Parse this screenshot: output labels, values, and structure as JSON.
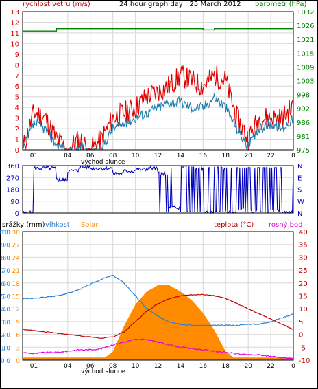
{
  "colors": {
    "wind_gust": "#e00000",
    "wind_avg": "#1e7fb0",
    "barometer": "#008000",
    "direction": "#0000c0",
    "humidity": "#2a7fd0",
    "solar": "#ff8c00",
    "temperature": "#c00000",
    "dewpoint": "#e000e0",
    "rain_axis": "#1e90ff",
    "grid": "#d8d8d8",
    "frame": "#000000"
  },
  "chart_data": [
    {
      "type": "line",
      "panel": "wind-barometer",
      "title": "24 hour graph day : 25 March 2012",
      "ylabel_left": "rychlost vetru (m/s)",
      "ylabel_right": "barometr (hPa)",
      "x_ticks": [
        "01",
        "04",
        "06",
        "08",
        "10",
        "12",
        "14",
        "16",
        "18",
        "20",
        "22",
        "0"
      ],
      "x_note": "východ slunce",
      "y_left_ticks": [
        "0",
        "1",
        "2",
        "3",
        "4",
        "5",
        "6",
        "7",
        "8",
        "9",
        "10",
        "11",
        "12",
        "13"
      ],
      "y_left_range": [
        0,
        13
      ],
      "y_right_ticks": [
        "975",
        "981",
        "986",
        "992",
        "998",
        "1003",
        "1009",
        "1015",
        "1021",
        "1026",
        "1032"
      ],
      "y_right_range": [
        975,
        1032
      ],
      "x": [
        0,
        1,
        2,
        3,
        4,
        5,
        6,
        7,
        8,
        9,
        10,
        11,
        12,
        13,
        14,
        15,
        16,
        17,
        18,
        19,
        20,
        21,
        22,
        23,
        24
      ],
      "series": [
        {
          "key": "gust",
          "values": [
            0,
            3.5,
            3,
            1,
            0,
            1,
            0,
            1,
            3,
            3.5,
            4,
            5,
            5.5,
            6,
            7,
            6.5,
            6,
            7,
            6.5,
            3,
            1,
            3,
            3,
            3,
            4
          ]
        },
        {
          "key": "avg",
          "values": [
            0,
            2.5,
            2,
            0.5,
            0,
            0.3,
            0,
            0.2,
            2,
            2.5,
            3,
            3.5,
            4,
            4.5,
            4.5,
            4,
            4,
            5,
            4,
            2,
            0.3,
            2,
            2.5,
            2,
            3
          ]
        },
        {
          "key": "barometer",
          "values": [
            1024,
            1024,
            1024,
            1025,
            1025,
            1025,
            1025,
            1025,
            1025,
            1025,
            1025,
            1025,
            1025,
            1025,
            1025,
            1025,
            1024.5,
            1025,
            1025,
            1025,
            1025,
            1025,
            1025,
            1025,
            1025
          ]
        }
      ]
    },
    {
      "type": "line",
      "panel": "wind-direction",
      "x_ticks": [],
      "y_left_ticks": [
        "0",
        "90",
        "180",
        "270",
        "360"
      ],
      "y_left_range": [
        0,
        360
      ],
      "y_right_ticks": [
        "N",
        "E",
        "S",
        "W",
        "N"
      ],
      "series": [
        {
          "key": "direction",
          "x": [
            0,
            1,
            2,
            3,
            3.5,
            4,
            5,
            6,
            7,
            8,
            9,
            10,
            11,
            12,
            13,
            14,
            15,
            16,
            17,
            18,
            19,
            20,
            21,
            22,
            23,
            24
          ],
          "values": [
            0,
            340,
            340,
            250,
            250,
            320,
            350,
            340,
            340,
            300,
            320,
            330,
            340,
            300,
            40,
            350,
            340,
            0,
            340,
            0,
            20,
            10,
            0,
            20,
            0,
            350
          ]
        }
      ]
    },
    {
      "type": "line",
      "panel": "temperature-humidity",
      "legend": [
        "srážky (mm)",
        "vlhkost",
        "Solar",
        "teplota (°C)",
        "rosný bod"
      ],
      "x_ticks": [
        "01",
        "04",
        "06",
        "08",
        "10",
        "12",
        "14",
        "16",
        "18",
        "20",
        "22",
        "0"
      ],
      "x_note": "východ slunce",
      "y_rain_ticks": [
        "0",
        "1",
        "2",
        "3",
        "4",
        "5",
        "6",
        "7",
        "8",
        "9",
        "10"
      ],
      "y_humidity_ticks": [
        "0",
        "10",
        "20",
        "30",
        "40",
        "50",
        "60",
        "70",
        "80",
        "90",
        "100"
      ],
      "y_solar_ticks": [
        "0",
        "3",
        "6",
        "9",
        "12",
        "15",
        "18",
        "21",
        "24",
        "27",
        "30"
      ],
      "y_right_ticks": [
        "-10",
        "-5",
        "0",
        "5",
        "10",
        "15",
        "20",
        "25",
        "30",
        "35",
        "40"
      ],
      "y_right_range": [
        -10,
        40
      ],
      "x": [
        0,
        1,
        2,
        3,
        4,
        5,
        6,
        7,
        8,
        9,
        10,
        11,
        12,
        13,
        14,
        15,
        16,
        17,
        18,
        19,
        20,
        21,
        22,
        23,
        24
      ],
      "series": [
        {
          "key": "humidity",
          "values": [
            48,
            48,
            49,
            50,
            52,
            55,
            59,
            63,
            66,
            60,
            50,
            40,
            34,
            30,
            28,
            27,
            27,
            27,
            27,
            27,
            28,
            28,
            30,
            33,
            36
          ]
        },
        {
          "key": "temperature",
          "values": [
            2,
            1.5,
            1,
            0.5,
            0,
            -0.5,
            -1,
            -1.5,
            -1,
            1,
            5,
            9,
            12,
            14,
            15,
            15.5,
            15.5,
            15,
            14,
            12,
            10,
            8,
            6,
            4,
            2
          ]
        },
        {
          "key": "dewpoint",
          "values": [
            -7,
            -7.5,
            -7,
            -7,
            -6.5,
            -6,
            -6,
            -5.5,
            -4,
            -3,
            -2,
            -2,
            -3,
            -4,
            -5,
            -5.5,
            -6,
            -6.5,
            -7,
            -7.5,
            -8,
            -8,
            -8.5,
            -9,
            -9.5
          ]
        },
        {
          "key": "solar",
          "values": [
            0,
            0,
            0,
            0,
            0,
            0,
            0,
            0,
            2,
            8,
            13,
            16,
            17.5,
            17.5,
            16,
            14,
            11,
            7,
            2,
            0,
            0,
            0,
            0,
            0,
            0
          ]
        }
      ]
    }
  ]
}
